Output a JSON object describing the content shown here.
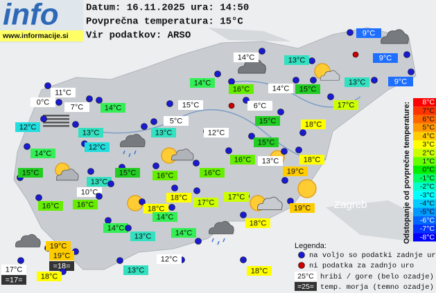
{
  "header": {
    "logo": "info",
    "site": "www.informacije.si",
    "date_line": "Datum: 16.11.2025 ura: 14:50",
    "avg_line": "Povprečna temperatura: 15°C",
    "source_line": "Vir podatkov: ARSO"
  },
  "map_labels": [
    "Zagreb"
  ],
  "stations": [
    {
      "label": "9°C",
      "color": "#1e6fff"
    },
    {
      "label": "14°C",
      "color": "#ffffff"
    },
    {
      "label": "13°C",
      "color": "#33e0c0"
    },
    {
      "label": "9°C",
      "color": "#1e6fff"
    },
    {
      "label": "14°C",
      "color": "#33ee55"
    },
    {
      "label": "16°C",
      "color": "#66ee00"
    },
    {
      "label": "14°C",
      "color": "#ffffff"
    },
    {
      "label": "15°C",
      "color": "#22cc22"
    },
    {
      "label": "13°C",
      "color": "#33e0c0"
    },
    {
      "label": "9°C",
      "color": "#1e6fff"
    },
    {
      "label": "11°C",
      "color": "#ffffff"
    },
    {
      "label": "0°C",
      "color": "#ffffff"
    },
    {
      "label": "7°C",
      "color": "#ffffff"
    },
    {
      "label": "14°C",
      "color": "#33ee55"
    },
    {
      "label": "15°C",
      "color": "#ffffff"
    },
    {
      "label": "6°C",
      "color": "#ffffff"
    },
    {
      "label": "17°C",
      "color": "#ccff00"
    },
    {
      "label": "12°C",
      "color": "#22dddd"
    },
    {
      "label": "5°C",
      "color": "#ffffff"
    },
    {
      "label": "15°C",
      "color": "#22cc22"
    },
    {
      "label": "13°C",
      "color": "#33e0c0"
    },
    {
      "label": "13°C",
      "color": "#33e0c0"
    },
    {
      "label": "12°C",
      "color": "#ffffff"
    },
    {
      "label": "18°C",
      "color": "#ffff00"
    },
    {
      "label": "12°C",
      "color": "#22dddd"
    },
    {
      "label": "15°C",
      "color": "#22cc22"
    },
    {
      "label": "14°C",
      "color": "#33ee55"
    },
    {
      "label": "16°C",
      "color": "#66ee00"
    },
    {
      "label": "13°C",
      "color": "#ffffff"
    },
    {
      "label": "18°C",
      "color": "#ffff00"
    },
    {
      "label": "15°C",
      "color": "#22cc22"
    },
    {
      "label": "15°C",
      "color": "#22cc22"
    },
    {
      "label": "16°C",
      "color": "#66ee00"
    },
    {
      "label": "16°C",
      "color": "#66ee00"
    },
    {
      "label": "19°C",
      "color": "#ffcc00"
    },
    {
      "label": "13°C",
      "color": "#33e0c0"
    },
    {
      "label": "10°C",
      "color": "#ffffff"
    },
    {
      "label": "18°C",
      "color": "#ffff00"
    },
    {
      "label": "17°C",
      "color": "#ccff00"
    },
    {
      "label": "17°C",
      "color": "#ccff00"
    },
    {
      "label": "16°C",
      "color": "#66ee00"
    },
    {
      "label": "16°C",
      "color": "#66ee00"
    },
    {
      "label": "18°C",
      "color": "#ffff00"
    },
    {
      "label": "19°C",
      "color": "#ffcc00"
    },
    {
      "label": "14°C",
      "color": "#33ee55"
    },
    {
      "label": "18°C",
      "color": "#ffff00"
    },
    {
      "label": "14°C",
      "color": "#33ee55"
    },
    {
      "label": "14°C",
      "color": "#33ee55"
    },
    {
      "label": "13°C",
      "color": "#33e0c0"
    },
    {
      "label": "19°C",
      "color": "#ffcc00"
    },
    {
      "label": "19°C",
      "color": "#ffcc00"
    },
    {
      "label": "=18=",
      "color": "#333333"
    },
    {
      "label": "12°C",
      "color": "#ffffff"
    },
    {
      "label": "17°C",
      "color": "#ffffff"
    },
    {
      "label": "=17=",
      "color": "#333333"
    },
    {
      "label": "18°C",
      "color": "#ffff00"
    },
    {
      "label": "13°C",
      "color": "#33e0c0"
    },
    {
      "label": "18°C",
      "color": "#ffff00"
    }
  ],
  "scale": {
    "title": "Odstopanje od povprečne temperature:",
    "steps": [
      {
        "label": "8°C",
        "color": "#ff0000"
      },
      {
        "label": "7°C",
        "color": "#ff3300"
      },
      {
        "label": "6°C",
        "color": "#ff6600"
      },
      {
        "label": "5°C",
        "color": "#ff9900"
      },
      {
        "label": "4°C",
        "color": "#ffcc00"
      },
      {
        "label": "3°C",
        "color": "#ffff00"
      },
      {
        "label": "2°C",
        "color": "#ccff00"
      },
      {
        "label": "1°C",
        "color": "#66ff00"
      },
      {
        "label": "0°C",
        "color": "#00ee00"
      },
      {
        "label": "-1°C",
        "color": "#00ff66"
      },
      {
        "label": "-2°C",
        "color": "#00ffcc"
      },
      {
        "label": "-3°C",
        "color": "#00ffff"
      },
      {
        "label": "-4°C",
        "color": "#00ccff"
      },
      {
        "label": "-5°C",
        "color": "#0099ff"
      },
      {
        "label": "-6°C",
        "color": "#0066ff"
      },
      {
        "label": "-7°C",
        "color": "#0033ff"
      },
      {
        "label": "-8°C",
        "color": "#0000ff"
      }
    ]
  },
  "legend": {
    "title": "Legenda:",
    "available": "na voljo so podatki zadnje ure",
    "missing": "ni podatka za zadnjo uro",
    "hill_sample": "25°C",
    "hill_text": "hribi / gore (belo ozadje)",
    "sea_sample": "=25=",
    "sea_text": "temp. morja (temno ozadje)"
  }
}
